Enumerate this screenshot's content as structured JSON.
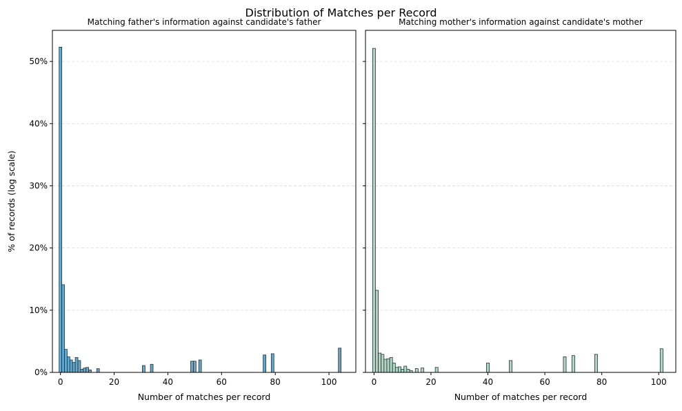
{
  "figure": {
    "suptitle": "Distribution of Matches per Record"
  },
  "chart_data": [
    {
      "type": "bar",
      "title": "Matching father's information against candidate's father",
      "xlabel": "Number of matches per record",
      "ylabel": "% of records (log scale)",
      "xlim": [
        -3,
        110
      ],
      "ylim": [
        0,
        55
      ],
      "xticks": [
        0,
        20,
        40,
        60,
        80,
        100
      ],
      "yticks": [
        0,
        10,
        20,
        30,
        40,
        50
      ],
      "ytick_format": "percent",
      "grid": "y dashed",
      "bar_width": 1,
      "color": "#5ba3c9",
      "x": [
        0,
        1,
        2,
        3,
        4,
        5,
        6,
        7,
        8,
        9,
        10,
        11,
        14,
        31,
        34,
        49,
        50,
        52,
        76,
        79,
        104
      ],
      "values": [
        52.3,
        14.1,
        3.7,
        2.5,
        2.0,
        1.6,
        2.4,
        1.9,
        0.5,
        0.7,
        0.8,
        0.4,
        0.6,
        1.1,
        1.3,
        1.8,
        1.8,
        2.0,
        2.8,
        3.0,
        3.9
      ]
    },
    {
      "type": "bar",
      "title": "Matching mother's information against candidate's mother",
      "xlabel": "Number of matches per record",
      "ylabel": "",
      "xlim": [
        -3,
        106
      ],
      "ylim": [
        0,
        55
      ],
      "xticks": [
        0,
        20,
        40,
        60,
        80,
        100
      ],
      "yticks": [
        0,
        10,
        20,
        30,
        40,
        50
      ],
      "ytick_format": "percent",
      "grid": "y dashed",
      "bar_width": 1,
      "color": "#a8d5c4",
      "x": [
        0,
        1,
        2,
        3,
        4,
        5,
        6,
        7,
        8,
        9,
        10,
        11,
        12,
        13,
        15,
        17,
        22,
        40,
        48,
        67,
        70,
        78,
        101
      ],
      "values": [
        52.1,
        13.2,
        3.1,
        2.9,
        2.1,
        2.2,
        2.4,
        1.5,
        0.8,
        0.9,
        0.5,
        1.0,
        0.5,
        0.3,
        0.6,
        0.7,
        0.8,
        1.5,
        1.9,
        2.5,
        2.7,
        2.9,
        3.8
      ]
    }
  ]
}
